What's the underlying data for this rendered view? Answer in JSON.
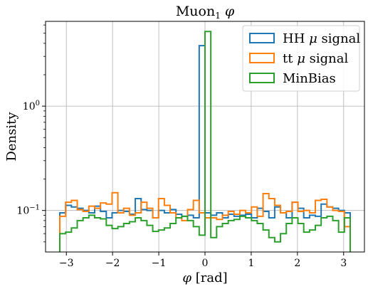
{
  "chart_data": {
    "type": "histogram",
    "title": "Muon$_1$ $\\phi$",
    "title_main": "Muon",
    "title_sub": "1",
    "title_phi": "φ",
    "xlabel": "$\\phi$ [rad]",
    "xlabel_phi": "φ",
    "xlabel_unit": " [rad]",
    "ylabel": "Density",
    "xlim": [
      -3.45,
      3.45
    ],
    "ylim": [
      0.04,
      6.5
    ],
    "yscale": "log",
    "grid": true,
    "legend_position": "top-right",
    "xticks": [
      -3,
      -2,
      -1,
      0,
      1,
      2,
      3
    ],
    "xtick_labels": [
      "−3",
      "−2",
      "−1",
      "0",
      "1",
      "2",
      "3"
    ],
    "yticks": [
      0.1,
      1
    ],
    "ytick_label_base": "10",
    "ytick_label_exps": [
      "−1",
      "0"
    ],
    "bin_edges": {
      "start": -3.14159,
      "end": 3.14159,
      "count": 50
    },
    "series": [
      {
        "name": "HH $\\mu$ signal",
        "legend_prefix": "HH ",
        "legend_mu": "μ",
        "legend_suffix": " signal",
        "color": "#1f77b4",
        "values": [
          0.095,
          0.112,
          0.108,
          0.105,
          0.1,
          0.095,
          0.11,
          0.098,
          0.085,
          0.095,
          0.1,
          0.098,
          0.092,
          0.13,
          0.102,
          0.1,
          0.085,
          0.1,
          0.095,
          0.102,
          0.092,
          0.088,
          0.09,
          0.085,
          3.8,
          0.095,
          0.09,
          0.095,
          0.085,
          0.092,
          0.088,
          0.09,
          0.092,
          0.085,
          0.105,
          0.098,
          0.085,
          0.108,
          0.095,
          0.085,
          0.12,
          0.105,
          0.085,
          0.09,
          0.088,
          0.115,
          0.108,
          0.105,
          0.1,
          0.095
        ]
      },
      {
        "name": "tt $\\mu$ signal",
        "legend_prefix": "tt ",
        "legend_mu": "μ",
        "legend_suffix": " signal",
        "color": "#ff7f0e",
        "values": [
          0.088,
          0.12,
          0.125,
          0.102,
          0.098,
          0.11,
          0.105,
          0.118,
          0.115,
          0.148,
          0.095,
          0.105,
          0.09,
          0.095,
          0.12,
          0.105,
          0.085,
          0.13,
          0.112,
          0.095,
          0.085,
          0.08,
          0.102,
          0.125,
          0.095,
          0.085,
          0.085,
          0.082,
          0.09,
          0.098,
          0.092,
          0.1,
          0.095,
          0.108,
          0.088,
          0.145,
          0.13,
          0.112,
          0.095,
          0.098,
          0.12,
          0.098,
          0.1,
          0.095,
          0.125,
          0.128,
          0.108,
          0.1,
          0.098,
          0.07
        ]
      },
      {
        "name": "MinBias",
        "color": "#2ca02c",
        "values": [
          0.06,
          0.062,
          0.068,
          0.08,
          0.085,
          0.09,
          0.085,
          0.083,
          0.072,
          0.067,
          0.07,
          0.075,
          0.078,
          0.085,
          0.08,
          0.072,
          0.063,
          0.065,
          0.068,
          0.075,
          0.085,
          0.088,
          0.08,
          0.07,
          0.058,
          5.2,
          0.055,
          0.07,
          0.075,
          0.08,
          0.082,
          0.088,
          0.085,
          0.08,
          0.075,
          0.065,
          0.055,
          0.05,
          0.06,
          0.075,
          0.085,
          0.075,
          0.062,
          0.065,
          0.072,
          0.085,
          0.088,
          0.08,
          0.062,
          0.085
        ]
      }
    ]
  }
}
